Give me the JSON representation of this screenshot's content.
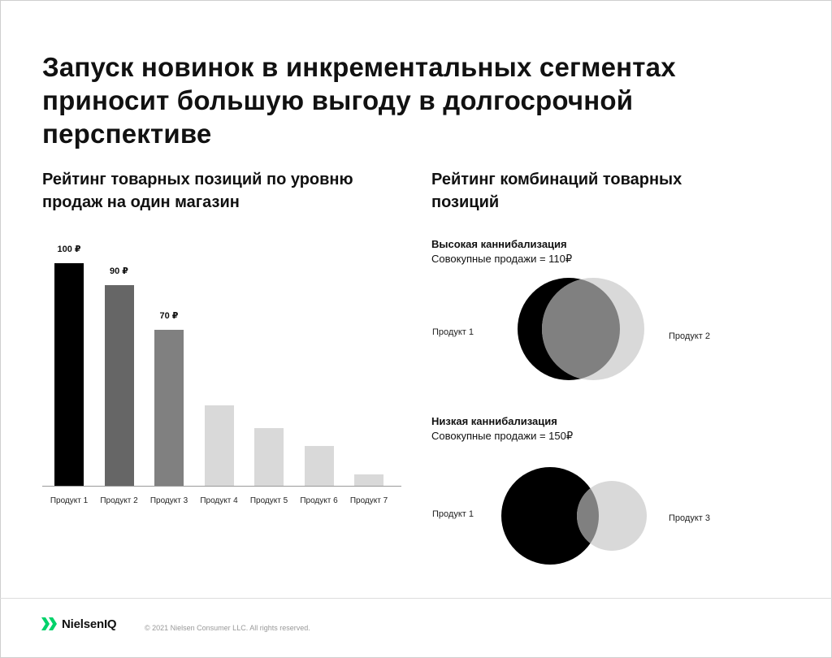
{
  "title": "Запуск новинок в инкрементальных сегментах приносит большую выгоду в долгосрочной перспективе",
  "left_subtitle": "Рейтинг товарных позиций по уровню продаж на один магазин",
  "right_subtitle": "Рейтинг комбинаций товарных позиций",
  "chart_data": [
    {
      "type": "bar",
      "categories": [
        "Продукт 1",
        "Продукт 2",
        "Продукт 3",
        "Продукт 4",
        "Продукт 5",
        "Продукт 6",
        "Продукт 7"
      ],
      "values": [
        100,
        90,
        70,
        36,
        26,
        18,
        5
      ],
      "data_labels": [
        "100 ₽",
        "90 ₽",
        "70 ₽",
        "",
        "",
        "",
        ""
      ],
      "colors": [
        "#000000",
        "#666666",
        "#808080",
        "#d9d9d9",
        "#d9d9d9",
        "#d9d9d9",
        "#d9d9d9"
      ],
      "ylim": [
        0,
        100
      ],
      "grid": false
    },
    {
      "type": "venn",
      "heading": "Высокая каннибализация",
      "total": "Совокупные продажи = 110₽",
      "sets": [
        {
          "label": "Продукт 1",
          "color": "#000000"
        },
        {
          "label": "Продукт 2",
          "color": "#d9d9d9"
        }
      ],
      "overlap_color": "#808080"
    },
    {
      "type": "venn",
      "heading": "Низкая каннибализация",
      "total": "Совокупные продажи = 150₽",
      "sets": [
        {
          "label": "Продукт 1",
          "color": "#000000"
        },
        {
          "label": "Продукт 3",
          "color": "#d9d9d9"
        }
      ],
      "overlap_color": "#808080"
    }
  ],
  "footer": {
    "logo_text": "NielsenIQ",
    "copyright": "© 2021 Nielsen Consumer LLC. All rights reserved.",
    "logo_color": "#00d26a"
  }
}
